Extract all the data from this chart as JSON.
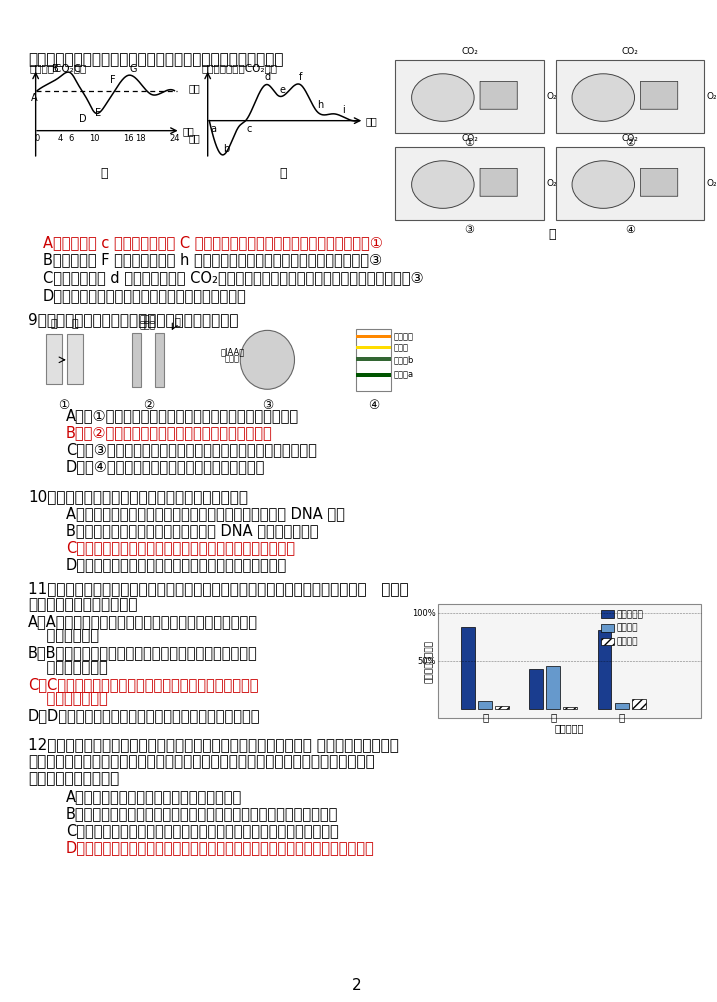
{
  "page_number": "2",
  "background": "#ffffff",
  "top_text": "然环境中相同。获得实验结果如下图。下列有关说法不正确的是",
  "q8_options": [
    {
      "text": "A．图乙中的 c 点对应图甲中的 C 点，此时细胞内的气体交换状态对应图丙中的①",
      "color": "#cc0000"
    },
    {
      "text": "B．图甲中的 F 点对应图乙中的 h 点，此时细胞内的气体交换状态对应图丙中的③",
      "color": "#000000"
    },
    {
      "text": "C．到达图乙中 d 点时，玻璃罩内 CO₂浓度最高，此时细胞内气体交换状态对应图丙中的③",
      "color": "#000000"
    },
    {
      "text": "D．经过这一昼夜之后，植物体的有机物含量会增加",
      "color": "#000000"
    }
  ],
  "q9_stem": "9、下列有关生物实验的四幅图，相关叙述正确的是",
  "q9_options": [
    {
      "text": "A．图①由甲转换为乙时，视野中所观察到的细胞数目增多",
      "color": "#000000"
    },
    {
      "text": "B．图②两个胚芽鞘在单侧光照射下将弯向同一方向",
      "color": "#cc0000"
    },
    {
      "text": "C．图③发生质壁分离的条件是细胞液浓度要大于外界溶液浓度",
      "color": "#000000"
    },
    {
      "text": "D．图④是新鲜菠菜叶片叶绿体中色素的层析结果",
      "color": "#000000"
    }
  ],
  "q10_stem": "10、有关细胞生命历程中各种现象的叙述，正确的是",
  "q10_options": [
    {
      "text": "A．细胞核在有丝分裂全过程中都发生转录，仅间期进行 DNA 复制",
      "color": "#000000"
    },
    {
      "text": "B．在不断增长的癌组织中，癌细胞内 DNA 量始终保持不变",
      "color": "#000000"
    },
    {
      "text": "C．随着细胞的生长，细胞表面积和体积的比值会有所减小",
      "color": "#cc0000"
    },
    {
      "text": "D．细胞的衰老受基因的控制，细胞凋亡则不受基因控制",
      "color": "#000000"
    }
  ],
  "q11_stem1": "11、用差速离心法分离出某动物细胞的三种细胞器，经测定其中三种有机物的含量   如图所",
  "q11_stem2": "示。以下有关说法正确的是",
  "q11_options": [
    {
      "lines": [
        "A．细胞器甲是线粒体，有氧呼吸时葡萄糖进入其中被",
        "彻底氧化分解"
      ],
      "color": "#000000"
    },
    {
      "lines": [
        "B．细胞器乙只含有蛋白质和脂质，肯定与分泌蛋白的",
        "加工和分泌有关"
      ],
      "color": "#000000"
    },
    {
      "lines": [
        "C．若细胞器丙不断从内质网上脱落下来，将直接影响",
        "分泌蛋白的合成"
      ],
      "color": "#cc0000"
    },
    {
      "lines": [
        "D．醋酸杆菌细胞与此细胞共有的细胞器可能有甲和丙"
      ],
      "color": "#000000"
    }
  ],
  "q12_stem1": "12、研究发现，冬小麦在秋冬受低温侵袭时，呼吸速率先升高后降低 持续的冷害使根生长",
  "q12_stem2": "迟缓，吸收能力下降，但细胞内可溶性糖的含量有明显的提高。下列有关水对生命活动",
  "q12_stem3": "影响的叙述中合理的是",
  "q12_options": [
    {
      "text": "A．冷害初期呼吸作用增强，不利于抵御寒冷",
      "color": "#000000"
    },
    {
      "text": "B．持续低温使线粒体内氧化磷酸化活性减弱，影响可溶性糖合成淀粉",
      "color": "#000000"
    },
    {
      "text": "C．低温使细胞内结合水含量降低，自由水含量升高，以适应低温环境",
      "color": "#000000"
    },
    {
      "text": "D．在休眠的植物体内自由水与结合水的比值降低，有利于降低植物的细胞代谢",
      "color": "#cc0000"
    }
  ]
}
